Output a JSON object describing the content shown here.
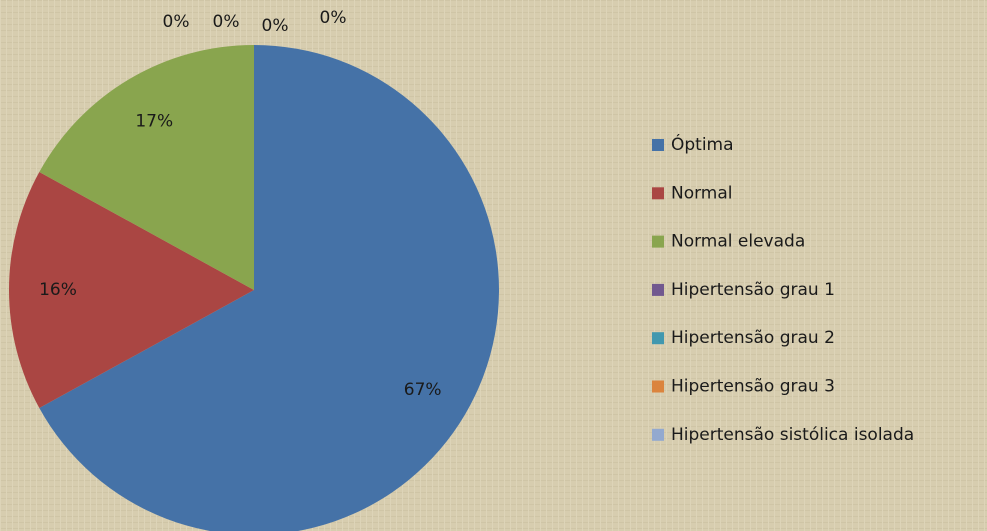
{
  "chart_data": {
    "type": "pie",
    "categories": [
      "Óptima",
      "Normal",
      "Normal elevada",
      "Hipertensão grau 1",
      "Hipertensão grau 2",
      "Hipertensão grau 3",
      "Hipertensão sistólica isolada"
    ],
    "values": [
      67,
      16,
      17,
      0,
      0,
      0,
      0
    ],
    "value_labels": [
      "67%",
      "16%",
      "17%",
      "0%",
      "0%",
      "0%",
      "0%"
    ],
    "colors": [
      "#4572a7",
      "#aa4643",
      "#89a54e",
      "#71588f",
      "#4198af",
      "#db843d",
      "#93a9cf"
    ],
    "legend": "right"
  }
}
